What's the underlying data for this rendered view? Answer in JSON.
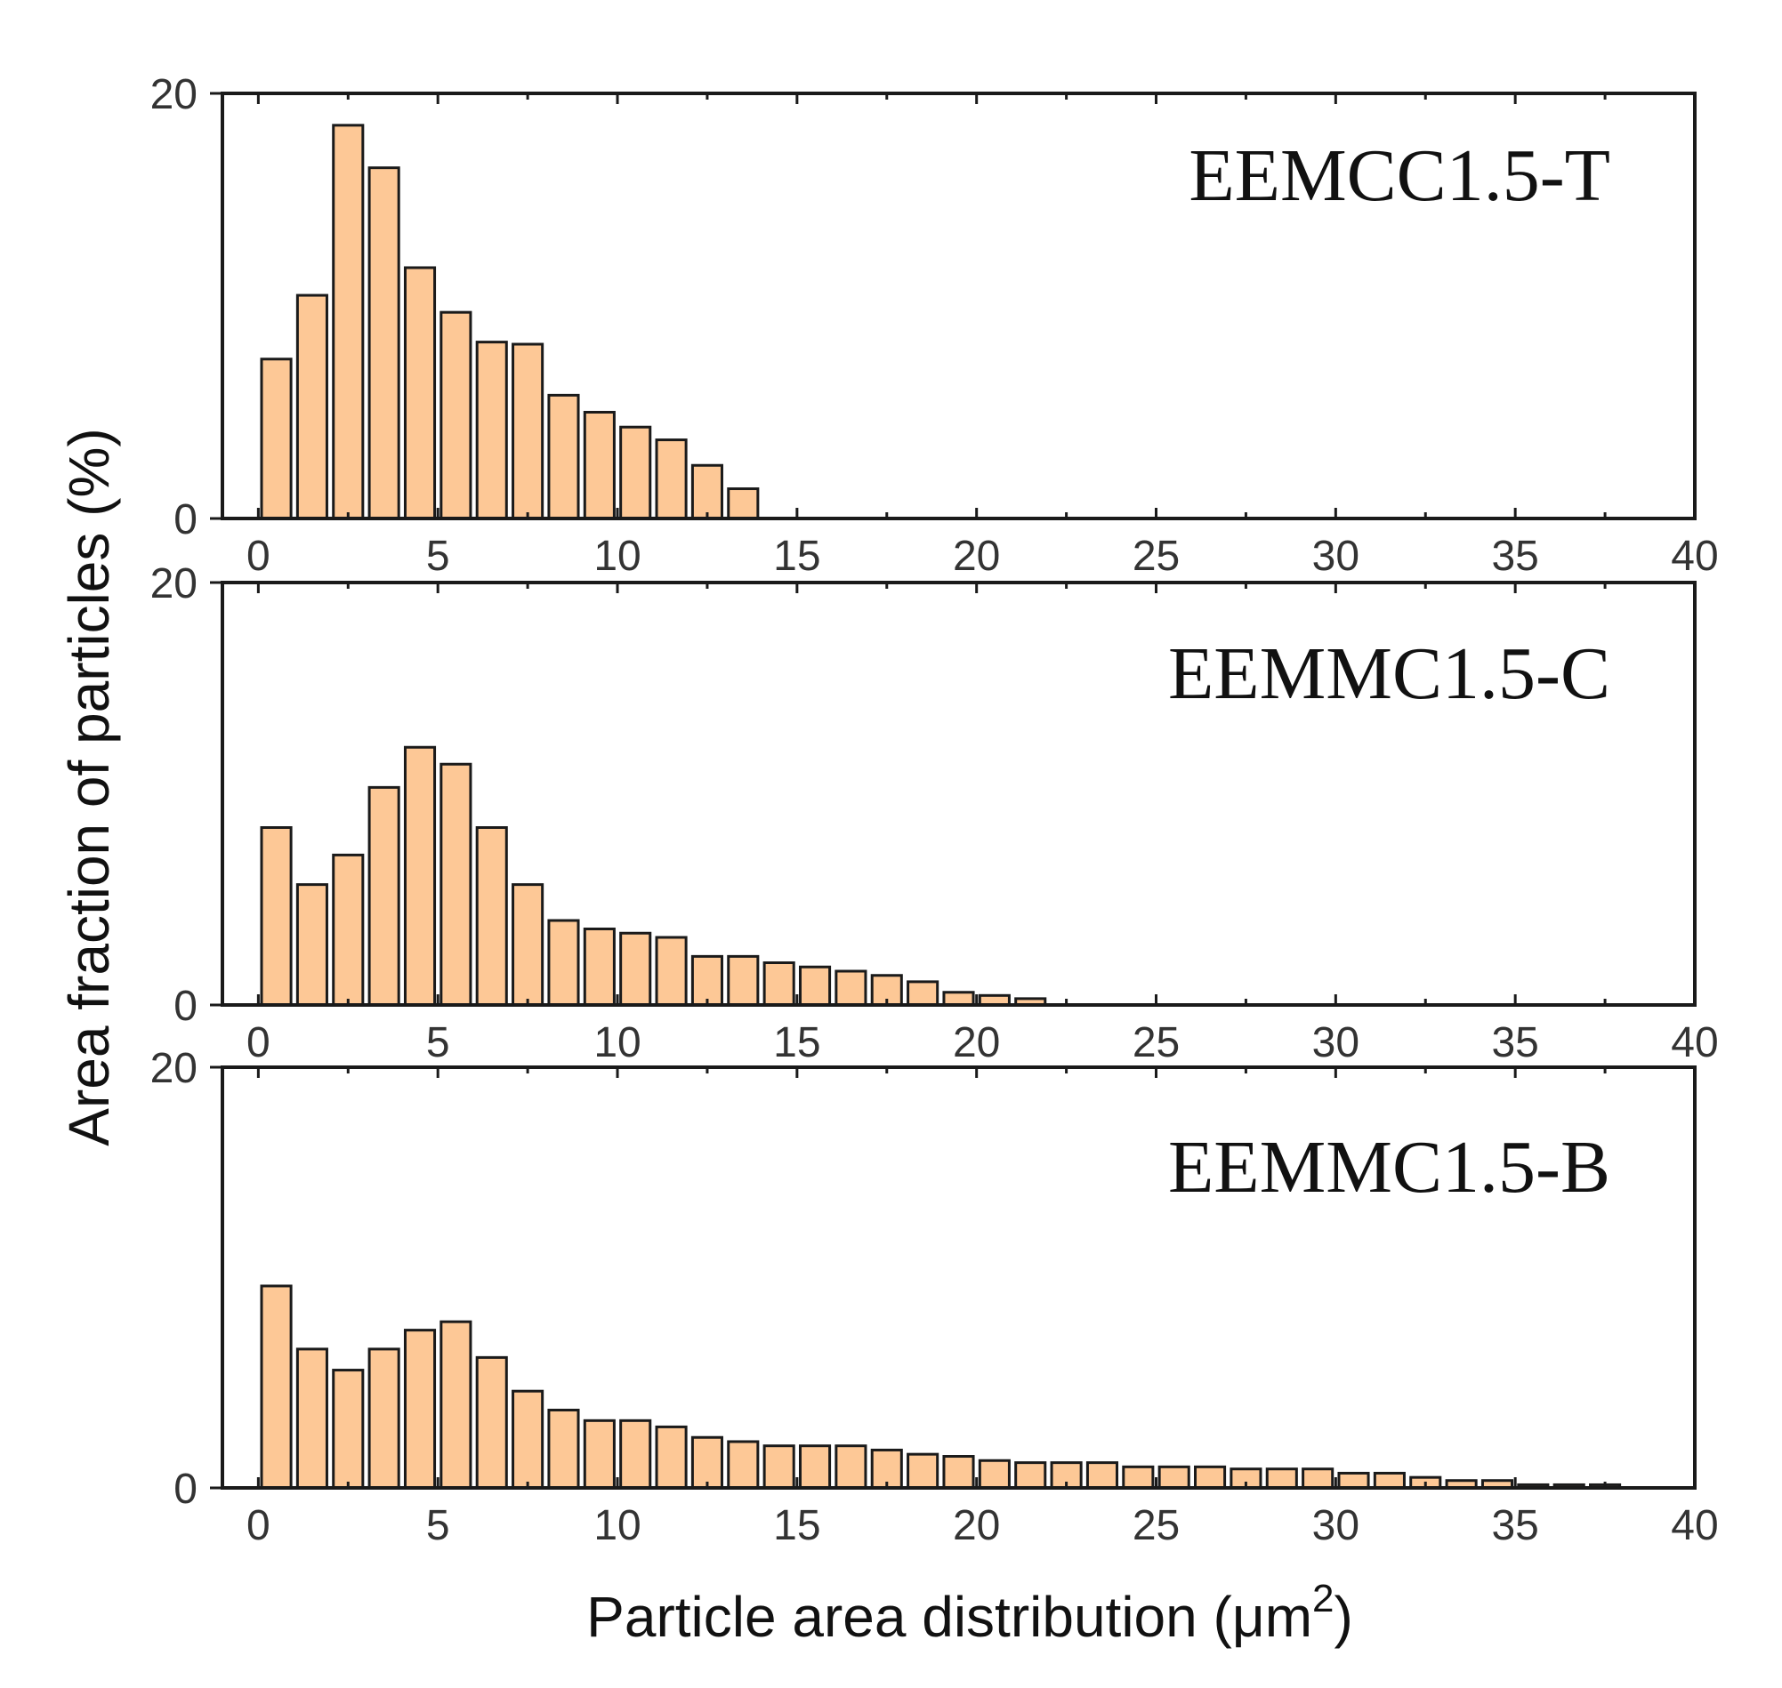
{
  "chart_data": [
    {
      "type": "bar",
      "panel_label": "EEMCC1.5-T",
      "bin_width": 1,
      "x": [
        0.5,
        1.5,
        2.5,
        3.5,
        4.5,
        5.5,
        6.5,
        7.5,
        8.5,
        9.5,
        10.5,
        11.5,
        12.5,
        13.5
      ],
      "values": [
        7.5,
        10.5,
        18.5,
        16.5,
        11.8,
        9.7,
        8.3,
        8.2,
        5.8,
        5.0,
        4.3,
        3.7,
        2.5,
        1.4
      ],
      "xlim": [
        -1,
        40
      ],
      "ylim": [
        0,
        20
      ],
      "xticks": [
        0,
        5,
        10,
        15,
        20,
        25,
        30,
        35,
        40
      ],
      "yticks": [
        0,
        20
      ]
    },
    {
      "type": "bar",
      "panel_label": "EEMMC1.5-C",
      "bin_width": 1,
      "x": [
        0.5,
        1.5,
        2.5,
        3.5,
        4.5,
        5.5,
        6.5,
        7.5,
        8.5,
        9.5,
        10.5,
        11.5,
        12.5,
        13.5,
        14.5,
        15.5,
        16.5,
        17.5,
        18.5,
        19.5,
        20.5,
        21.5
      ],
      "values": [
        8.4,
        5.7,
        7.1,
        10.3,
        12.2,
        11.4,
        8.4,
        5.7,
        4.0,
        3.6,
        3.4,
        3.2,
        2.3,
        2.3,
        2.0,
        1.8,
        1.6,
        1.4,
        1.1,
        0.6,
        0.45,
        0.3
      ],
      "xlim": [
        -1,
        40
      ],
      "ylim": [
        0,
        20
      ],
      "xticks": [
        0,
        5,
        10,
        15,
        20,
        25,
        30,
        35,
        40
      ],
      "yticks": [
        0,
        20
      ]
    },
    {
      "type": "bar",
      "panel_label": "EEMMC1.5-B",
      "bin_width": 1,
      "x": [
        0.5,
        1.5,
        2.5,
        3.5,
        4.5,
        5.5,
        6.5,
        7.5,
        8.5,
        9.5,
        10.5,
        11.5,
        12.5,
        13.5,
        14.5,
        15.5,
        16.5,
        17.5,
        18.5,
        19.5,
        20.5,
        21.5,
        22.5,
        23.5,
        24.5,
        25.5,
        26.5,
        27.5,
        28.5,
        29.5,
        30.5,
        31.5,
        32.5,
        33.5,
        34.5,
        35.5,
        36.5,
        37.5
      ],
      "values": [
        9.6,
        6.6,
        5.6,
        6.6,
        7.5,
        7.9,
        6.2,
        4.6,
        3.7,
        3.2,
        3.2,
        2.9,
        2.4,
        2.2,
        2.0,
        2.0,
        2.0,
        1.8,
        1.6,
        1.5,
        1.3,
        1.2,
        1.2,
        1.2,
        1.0,
        1.0,
        1.0,
        0.9,
        0.9,
        0.9,
        0.7,
        0.7,
        0.5,
        0.35,
        0.35,
        0.15,
        0.15,
        0.15
      ],
      "xlim": [
        -1,
        40
      ],
      "ylim": [
        0,
        20
      ],
      "xticks": [
        0,
        5,
        10,
        15,
        20,
        25,
        30,
        35,
        40
      ],
      "yticks": [
        0,
        20
      ]
    }
  ],
  "axes": {
    "ylabel": "Area fraction of particles (%)",
    "xlabel_main": "Particle area distribution (",
    "xlabel_unit": "μm",
    "xlabel_sup": "2",
    "xlabel_close": ")"
  },
  "colors": {
    "bar_fill": "#fdc896",
    "bar_stroke": "#1a1a1a"
  }
}
